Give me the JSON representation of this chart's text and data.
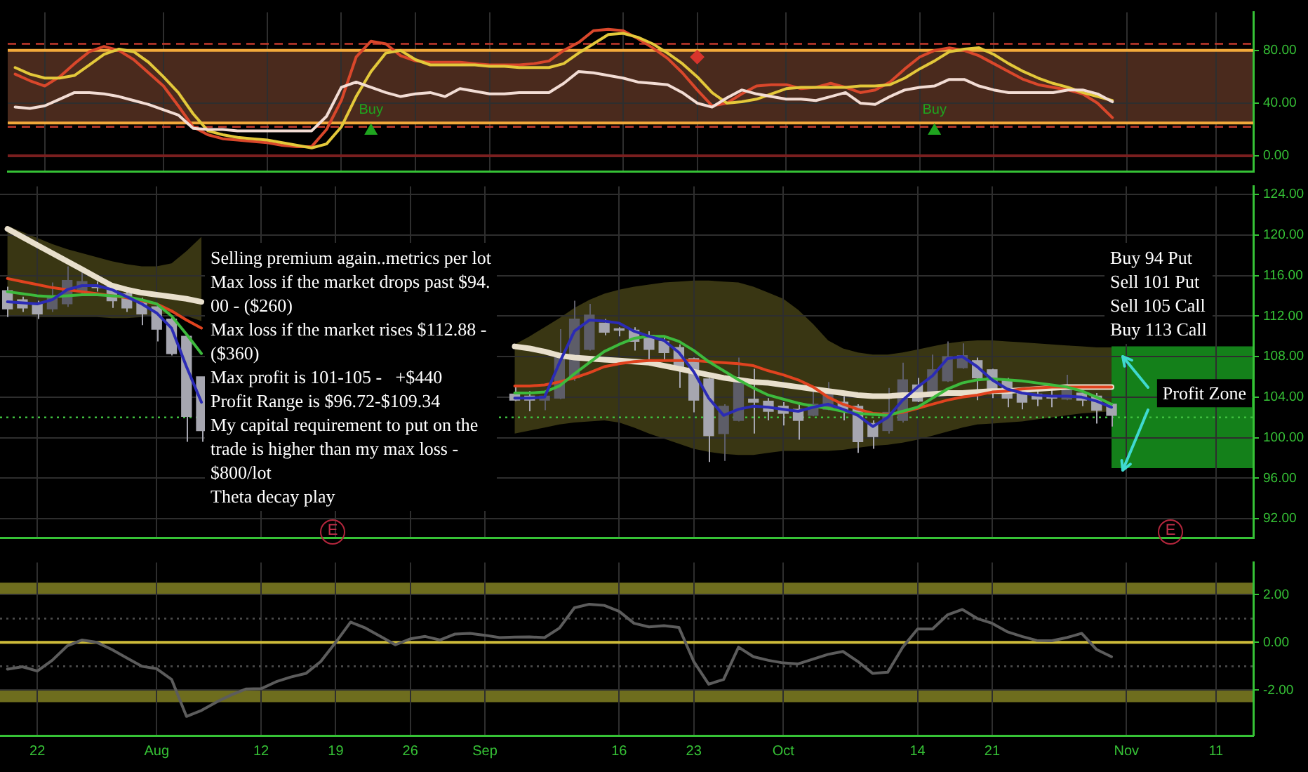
{
  "chart_data": [
    {
      "type": "line",
      "categories": [
        null,
        null,
        null,
        null,
        null,
        null,
        null,
        null,
        null,
        null,
        null,
        null,
        null,
        null,
        null,
        null,
        null,
        null,
        null,
        null,
        null,
        null,
        null,
        null,
        null,
        null,
        null,
        null,
        null,
        null,
        null,
        null,
        null,
        null,
        null,
        null,
        null,
        null,
        null,
        null,
        null,
        null,
        null,
        null,
        null,
        null,
        null,
        null,
        null,
        null,
        null,
        null,
        null,
        null,
        null,
        null,
        null,
        null,
        null,
        null,
        null,
        null,
        null,
        null,
        null,
        null,
        null,
        null,
        null,
        null,
        null,
        null,
        null,
        null,
        null,
        null,
        null,
        null,
        null,
        null,
        null,
        null,
        null,
        null
      ],
      "series": [
        {
          "color": "#d9472b",
          "values": [
            62,
            57,
            53,
            60,
            70,
            79,
            83,
            80,
            73,
            63,
            53,
            38,
            22,
            16,
            13,
            12,
            11,
            10,
            8,
            7,
            7,
            20,
            42,
            75,
            87,
            85,
            76,
            72,
            71,
            71,
            71,
            70,
            69,
            69,
            69,
            70,
            72,
            80,
            86,
            95,
            96,
            95,
            89,
            82,
            74,
            63,
            50,
            38,
            40,
            47,
            53,
            54,
            54,
            51,
            52,
            55,
            52,
            48,
            50,
            56,
            66,
            75,
            80,
            82,
            80,
            76,
            70,
            64,
            58,
            54,
            52,
            50,
            47,
            40,
            29,
            null,
            null,
            null,
            null,
            null,
            null,
            null,
            null,
            null
          ]
        },
        {
          "color": "#e3c83a",
          "values": [
            67,
            62,
            59,
            59,
            61,
            69,
            77,
            81,
            79,
            71,
            60,
            48,
            32,
            19,
            16,
            14,
            13,
            12,
            10,
            8,
            6,
            9,
            22,
            45,
            64,
            78,
            80,
            73,
            69,
            69,
            69,
            69,
            68,
            68,
            67,
            67,
            67,
            70,
            78,
            85,
            92,
            93,
            90,
            85,
            78,
            70,
            60,
            48,
            40,
            41,
            43,
            47,
            51,
            52,
            52,
            52,
            52,
            53,
            53,
            54,
            59,
            66,
            72,
            79,
            81,
            82,
            77,
            70,
            64,
            59,
            55,
            52,
            48,
            45,
            42,
            null,
            null,
            null,
            null,
            null,
            null,
            null,
            null,
            null
          ]
        },
        {
          "color": "#f2dcd4",
          "values": [
            37,
            36,
            38,
            43,
            48,
            48,
            47,
            45,
            42,
            39,
            35,
            31,
            21,
            20,
            20,
            19,
            19,
            19,
            19,
            19,
            19,
            30,
            52,
            56,
            52,
            48,
            45,
            47,
            48,
            45,
            51,
            49,
            47,
            47,
            48,
            48,
            48,
            55,
            64,
            63,
            61,
            59,
            56,
            55,
            54,
            48,
            40,
            37,
            44,
            50,
            47,
            45,
            43,
            43,
            42,
            45,
            48,
            40,
            39,
            45,
            50,
            52,
            53,
            58,
            58,
            53,
            50,
            48,
            48,
            48,
            48,
            50,
            50,
            47,
            41,
            null,
            null,
            null,
            null,
            null,
            null,
            null,
            null,
            null
          ]
        },
        {
          "type": "scatter",
          "color": "#1fa51f",
          "marker": "triangle",
          "values": [
            null,
            null,
            null,
            null,
            null,
            null,
            null,
            null,
            null,
            null,
            null,
            null,
            null,
            null,
            null,
            null,
            null,
            null,
            null,
            null,
            null,
            null,
            null,
            null,
            19,
            null,
            null,
            null,
            null,
            null,
            null,
            null,
            null,
            null,
            null,
            null,
            null,
            null,
            null,
            null,
            null,
            null,
            null,
            null,
            null,
            null,
            null,
            null,
            null,
            null,
            null,
            null,
            null,
            null,
            null,
            null,
            null,
            null,
            null,
            null,
            null,
            null,
            19,
            null,
            null,
            null,
            null,
            null,
            null,
            null,
            null,
            null,
            null,
            null,
            null,
            null,
            null,
            null,
            null,
            null,
            null,
            null,
            null,
            null
          ],
          "value_labels": [
            null,
            null,
            null,
            null,
            null,
            null,
            null,
            null,
            null,
            null,
            null,
            null,
            null,
            null,
            null,
            null,
            null,
            null,
            null,
            null,
            null,
            null,
            null,
            null,
            "Buy",
            null,
            null,
            null,
            null,
            null,
            null,
            null,
            null,
            null,
            null,
            null,
            null,
            null,
            null,
            null,
            null,
            null,
            null,
            null,
            null,
            null,
            null,
            null,
            null,
            null,
            null,
            null,
            null,
            null,
            null,
            null,
            null,
            null,
            null,
            null,
            null,
            null,
            "Buy",
            null,
            null,
            null,
            null,
            null,
            null,
            null,
            null,
            null,
            null,
            null,
            null,
            null,
            null,
            null,
            null,
            null,
            null,
            null,
            null,
            null
          ]
        },
        {
          "type": "scatter",
          "color": "#d8342c",
          "marker": "diamond",
          "values": [
            null,
            null,
            null,
            null,
            null,
            null,
            null,
            null,
            null,
            null,
            null,
            null,
            null,
            null,
            null,
            null,
            null,
            null,
            null,
            null,
            null,
            null,
            null,
            null,
            null,
            null,
            null,
            null,
            null,
            null,
            null,
            null,
            null,
            null,
            null,
            null,
            null,
            null,
            null,
            null,
            null,
            null,
            null,
            null,
            null,
            null,
            75,
            null,
            null,
            null,
            null,
            null,
            null,
            null,
            null,
            null,
            null,
            null,
            null,
            null,
            null,
            null,
            null,
            null,
            null,
            null,
            null,
            null,
            null,
            null,
            null,
            null,
            null,
            null,
            null,
            null,
            null,
            null,
            null,
            null,
            null,
            null,
            null,
            null
          ]
        }
      ],
      "ylim": [
        -12,
        109
      ],
      "yticks": [
        {
          "value": 0,
          "label": "0.00"
        },
        {
          "value": 40,
          "label": "40.00"
        },
        {
          "value": 80,
          "label": "80.00"
        }
      ],
      "bands": [
        {
          "axis": "y",
          "from": 25,
          "to": 80,
          "color": "#4a2a1d"
        }
      ],
      "ref_lines": [
        {
          "axis": "y",
          "value": 80,
          "color": "#f2a93b"
        },
        {
          "axis": "y",
          "value": 25,
          "color": "#f2a93b"
        },
        {
          "axis": "y",
          "value": 85,
          "color": "#c33a2c",
          "line_style": "dashed"
        },
        {
          "axis": "y",
          "value": 22,
          "color": "#c33a2c",
          "line_style": "dashed"
        },
        {
          "axis": "y",
          "value": 0,
          "color": "#7a1f1f"
        }
      ],
      "grid": true,
      "tick_labels": "y"
    },
    {
      "type": "candlestick",
      "categories": [
        null,
        null,
        null,
        null,
        null,
        null,
        null,
        null,
        null,
        null,
        null,
        null,
        null,
        null,
        null,
        null,
        null,
        null,
        null,
        null,
        null,
        null,
        null,
        null,
        null,
        null,
        null,
        null,
        null,
        null,
        null,
        null,
        null,
        null,
        null,
        null,
        null,
        null,
        null,
        null,
        null,
        null,
        null,
        null,
        null,
        null,
        null,
        null,
        null,
        null,
        null,
        null,
        null,
        null,
        null,
        null,
        null,
        null,
        null,
        null,
        null,
        null,
        null,
        null,
        null,
        null,
        null,
        null,
        null,
        null,
        null,
        null,
        null,
        null,
        null,
        null,
        null,
        null,
        null,
        null,
        null,
        null,
        null,
        null
      ],
      "ohlc": [
        [
          114.5,
          114.9,
          111.9,
          112.7
        ],
        [
          113.6,
          113.9,
          112.4,
          112.8
        ],
        [
          113.2,
          113.5,
          111.7,
          112.2
        ],
        [
          112.7,
          115.3,
          112.4,
          114.0
        ],
        [
          113.2,
          116.9,
          112.9,
          115.5
        ],
        [
          114.4,
          116.4,
          114.2,
          115.4
        ],
        [
          114.9,
          115.4,
          114.4,
          114.8
        ],
        [
          114.9,
          115.2,
          112.8,
          113.5
        ],
        [
          114.2,
          114.4,
          112.4,
          112.8
        ],
        [
          113.5,
          113.8,
          111.1,
          112.2
        ],
        [
          112.9,
          113.2,
          109.5,
          110.7
        ],
        [
          111.7,
          112.0,
          108.1,
          108.3
        ],
        [
          110.0,
          110.0,
          99.6,
          102.1
        ],
        [
          106.0,
          106.0,
          99.6,
          100.7
        ],
        null,
        null,
        null,
        null,
        null,
        null,
        null,
        null,
        null,
        null,
        null,
        null,
        null,
        null,
        null,
        null,
        null,
        null,
        null,
        null,
        [
          104.3,
          105.2,
          103.6,
          103.7
        ],
        [
          104.1,
          104.6,
          102.6,
          103.7
        ],
        [
          103.7,
          104.6,
          102.7,
          104.1
        ],
        [
          103.9,
          110.7,
          103.8,
          107.9
        ],
        [
          105.9,
          113.5,
          105.6,
          111.7
        ],
        [
          108.7,
          113.2,
          108.6,
          112.1
        ],
        [
          111.3,
          111.7,
          110.1,
          110.4
        ],
        [
          110.7,
          110.9,
          110.0,
          110.6
        ],
        [
          110.6,
          110.9,
          108.6,
          109.5
        ],
        [
          110.1,
          110.5,
          107.6,
          108.7
        ],
        [
          109.5,
          110.0,
          107.6,
          108.4
        ],
        [
          108.9,
          109.2,
          104.9,
          106.7
        ],
        [
          107.8,
          107.9,
          102.5,
          103.7
        ],
        [
          105.8,
          105.9,
          97.6,
          100.2
        ],
        [
          100.4,
          103.3,
          97.7,
          103.1
        ],
        [
          101.7,
          107.9,
          101.6,
          105.8
        ],
        [
          103.8,
          106.8,
          100.4,
          103.5
        ],
        [
          103.6,
          103.9,
          101.7,
          102.6
        ],
        [
          103.1,
          103.5,
          101.2,
          102.4
        ],
        [
          102.8,
          103.3,
          99.8,
          101.7
        ],
        [
          102.2,
          104.8,
          102.1,
          103.3
        ],
        [
          102.8,
          105.5,
          102.7,
          104.4
        ],
        [
          103.5,
          104.1,
          101.7,
          102.8
        ],
        [
          103.1,
          103.3,
          98.5,
          99.6
        ],
        [
          101.4,
          101.7,
          98.9,
          100.1
        ],
        [
          100.7,
          104.9,
          100.4,
          102.5
        ],
        [
          101.7,
          107.4,
          101.5,
          105.7
        ],
        [
          105.2,
          105.9,
          103.5,
          103.6
        ],
        [
          104.4,
          108.2,
          104.3,
          106.7
        ],
        [
          105.6,
          109.5,
          105.5,
          108.0
        ],
        [
          106.9,
          109.3,
          106.8,
          108.1
        ],
        [
          107.6,
          107.9,
          103.7,
          105.9
        ],
        [
          106.7,
          106.8,
          103.9,
          104.8
        ],
        [
          105.7,
          105.9,
          103.0,
          103.9
        ],
        [
          104.7,
          104.9,
          102.8,
          103.5
        ],
        [
          104.3,
          104.6,
          103.1,
          103.8
        ],
        [
          104.0,
          104.8,
          103.0,
          103.9
        ],
        [
          103.8,
          106.2,
          103.7,
          104.8
        ],
        [
          104.4,
          104.7,
          103.1,
          103.7
        ],
        [
          104.1,
          104.4,
          101.4,
          102.7
        ],
        [
          103.3,
          103.4,
          101.1,
          102.2
        ],
        null,
        null,
        null,
        null,
        null,
        null,
        null,
        null,
        null
      ],
      "colors": [
        "#a6a6b0",
        "#a6a6b0",
        "#a6a6b0",
        "#5d5d68",
        "#5d5d68",
        "#5d5d68",
        "#a6a6b0",
        "#a6a6b0",
        "#a6a6b0",
        "#a6a6b0",
        "#a6a6b0",
        "#a6a6b0",
        "#a6a6b0",
        "#a6a6b0",
        null,
        null,
        null,
        null,
        null,
        null,
        null,
        null,
        null,
        null,
        null,
        null,
        null,
        null,
        null,
        null,
        null,
        null,
        null,
        null,
        "#a6a6b0",
        "#a6a6b0",
        "#5d5d68",
        "#5d5d68",
        "#5d5d68",
        "#5d5d68",
        "#a6a6b0",
        "#a6a6b0",
        "#a6a6b0",
        "#a6a6b0",
        "#a6a6b0",
        "#a6a6b0",
        "#a6a6b0",
        "#a6a6b0",
        "#5d5d68",
        "#5d5d68",
        "#a6a6b0",
        "#a6a6b0",
        "#a6a6b0",
        "#a6a6b0",
        "#5d5d68",
        "#5d5d68",
        "#a6a6b0",
        "#a6a6b0",
        "#a6a6b0",
        "#5d5d68",
        "#5d5d68",
        "#a6a6b0",
        "#5d5d68",
        "#5d5d68",
        "#5d5d68",
        "#a6a6b0",
        "#a6a6b0",
        "#a6a6b0",
        "#a6a6b0",
        "#a6a6b0",
        "#a6a6b0",
        "#5d5d68",
        "#a6a6b0",
        "#a6a6b0",
        "#a6a6b0",
        null,
        null,
        null,
        null,
        null,
        null,
        null,
        null,
        null
      ],
      "series": [
        {
          "type": "line",
          "color": "#e8dfcc",
          "values": [
            120.6,
            119.8,
            119.0,
            118.2,
            117.4,
            116.6,
            115.8,
            115.0,
            114.6,
            114.3,
            114.1,
            113.9,
            113.7,
            113.4,
            null,
            null,
            null,
            null,
            null,
            null,
            null,
            null,
            null,
            null,
            null,
            null,
            null,
            null,
            null,
            null,
            null,
            null,
            null,
            null,
            109.0,
            108.8,
            108.5,
            108.1,
            107.9,
            107.8,
            107.7,
            107.6,
            107.5,
            107.4,
            107.1,
            106.8,
            106.5,
            106.2,
            105.9,
            105.7,
            105.5,
            105.4,
            105.2,
            105.0,
            104.8,
            104.6,
            104.4,
            104.2,
            104.1,
            104.1,
            104.2,
            104.2,
            104.3,
            104.4,
            104.4,
            104.5,
            104.6,
            104.6,
            104.7,
            104.8,
            104.9,
            105.0,
            105.0,
            105.0,
            105.0,
            null,
            null,
            null,
            null,
            null,
            null,
            null,
            null,
            null
          ],
          "lower": [
            112.0,
            112.0,
            111.9,
            111.9,
            111.9,
            111.9,
            111.9,
            111.8,
            111.8,
            111.9,
            112.1,
            112.3,
            112.0,
            111.5,
            null,
            null,
            null,
            null,
            null,
            null,
            null,
            null,
            null,
            null,
            null,
            null,
            null,
            null,
            null,
            null,
            null,
            null,
            null,
            null,
            100.4,
            100.7,
            101.0,
            101.3,
            101.5,
            101.6,
            101.7,
            101.5,
            101.0,
            100.4,
            99.9,
            99.4,
            98.9,
            98.6,
            98.4,
            98.3,
            98.3,
            98.5,
            98.7,
            98.7,
            98.7,
            98.7,
            98.8,
            99.0,
            99.2,
            99.3,
            99.5,
            99.8,
            100.2,
            100.6,
            101.0,
            101.3,
            101.4,
            101.5,
            101.6,
            101.8,
            102.0,
            102.2,
            102.4,
            102.5,
            102.6,
            null,
            null,
            null,
            null,
            null,
            null,
            null,
            null,
            null
          ],
          "upper": [
            120.9,
            120.3,
            119.7,
            119.1,
            118.6,
            118.2,
            117.8,
            117.4,
            117.1,
            116.9,
            116.9,
            117.2,
            118.4,
            119.8,
            null,
            null,
            null,
            null,
            null,
            null,
            null,
            null,
            null,
            null,
            null,
            null,
            null,
            null,
            null,
            null,
            null,
            null,
            null,
            null,
            109.2,
            110.0,
            110.9,
            111.8,
            112.8,
            113.6,
            114.2,
            114.6,
            114.9,
            115.1,
            115.3,
            115.4,
            115.5,
            115.5,
            115.4,
            115.3,
            114.9,
            114.3,
            113.7,
            112.6,
            111.2,
            109.6,
            108.8,
            108.4,
            108.2,
            108.2,
            108.4,
            108.7,
            109.0,
            109.3,
            109.5,
            109.6,
            109.6,
            109.5,
            109.4,
            109.3,
            109.2,
            109.1,
            109.0,
            108.9,
            108.9,
            null,
            null,
            null,
            null,
            null,
            null,
            null,
            null,
            null
          ]
        },
        {
          "type": "line",
          "color": "#e0431f",
          "values": [
            115.7,
            115.4,
            115.1,
            114.8,
            114.6,
            114.4,
            114.2,
            114.0,
            113.8,
            113.5,
            113.2,
            112.5,
            111.6,
            110.8,
            null,
            null,
            null,
            null,
            null,
            null,
            null,
            null,
            null,
            null,
            null,
            null,
            null,
            null,
            null,
            null,
            null,
            null,
            null,
            null,
            105.1,
            105.1,
            105.2,
            105.5,
            105.9,
            106.4,
            107.0,
            107.3,
            107.5,
            107.6,
            107.6,
            107.6,
            107.6,
            107.5,
            107.4,
            107.3,
            107.1,
            106.6,
            106.2,
            105.7,
            105.0,
            104.0,
            103.3,
            102.8,
            102.4,
            102.3,
            102.5,
            102.9,
            103.3,
            103.7,
            104.0,
            104.2,
            104.5,
            104.6,
            104.8,
            104.9,
            105.0,
            105.0,
            105.0,
            105.0,
            105.0,
            null,
            null,
            null,
            null,
            null,
            null,
            null,
            null,
            null
          ]
        },
        {
          "type": "line",
          "color": "#3dba3d",
          "values": [
            114.4,
            114.2,
            114.0,
            113.9,
            114.0,
            114.1,
            114.1,
            114.0,
            113.9,
            113.6,
            113.2,
            112.0,
            110.2,
            108.3,
            null,
            null,
            null,
            null,
            null,
            null,
            null,
            null,
            null,
            null,
            null,
            null,
            null,
            null,
            null,
            null,
            null,
            null,
            null,
            null,
            104.4,
            104.4,
            104.5,
            105.1,
            106.3,
            107.4,
            108.5,
            109.2,
            109.8,
            110.0,
            110.0,
            109.5,
            108.6,
            107.5,
            106.6,
            105.7,
            104.9,
            104.2,
            103.8,
            103.4,
            103.1,
            102.9,
            102.6,
            102.4,
            102.3,
            102.2,
            102.6,
            103.0,
            103.9,
            104.8,
            105.4,
            105.7,
            105.8,
            105.7,
            105.6,
            105.4,
            105.2,
            105.0,
            104.6,
            104.0,
            103.3,
            null,
            null,
            null,
            null,
            null,
            null,
            null,
            null,
            null
          ]
        },
        {
          "type": "line",
          "color": "#2b2bb5",
          "values": [
            113.4,
            113.3,
            113.2,
            113.6,
            114.6,
            115.0,
            115.0,
            114.6,
            113.9,
            113.2,
            112.3,
            110.8,
            107.0,
            103.5,
            null,
            null,
            null,
            null,
            null,
            null,
            null,
            null,
            null,
            null,
            null,
            null,
            null,
            null,
            null,
            null,
            null,
            null,
            null,
            null,
            103.9,
            103.9,
            104.0,
            107.4,
            110.5,
            111.6,
            111.5,
            111.3,
            110.5,
            110.0,
            109.6,
            108.4,
            106.5,
            103.9,
            102.2,
            102.8,
            103.1,
            103.0,
            102.8,
            102.6,
            103.0,
            103.3,
            102.8,
            102.2,
            101.1,
            102.0,
            103.7,
            105.0,
            106.1,
            107.8,
            108.0,
            107.0,
            105.7,
            104.8,
            104.4,
            104.2,
            104.1,
            104.1,
            104.0,
            103.6,
            103.0,
            null,
            null,
            null,
            null,
            null,
            null,
            null,
            null,
            null
          ]
        }
      ],
      "ylim": [
        90.1,
        124.8
      ],
      "yticks": [
        {
          "value": 92,
          "label": "92.00"
        },
        {
          "value": 96,
          "label": "96.00"
        },
        {
          "value": 100,
          "label": "100.00"
        },
        {
          "value": 104,
          "label": "104.00"
        },
        {
          "value": 108,
          "label": "108.00"
        },
        {
          "value": 112,
          "label": "112.00"
        },
        {
          "value": 116,
          "label": "116.00"
        },
        {
          "value": 120,
          "label": "120.00"
        },
        {
          "value": 124,
          "label": "124.00"
        }
      ],
      "bands": [
        {
          "axis": "y",
          "from": 97,
          "to": 109,
          "label": "Profit Zone",
          "color": "#14801a"
        }
      ],
      "ref_lines": [
        {
          "axis": "y",
          "value": 102.0,
          "color": "#3fbf3f",
          "line_style": "dotted"
        }
      ],
      "annotations": [
        "Selling premium again..metrics per lot\nMax loss if the market drops past $94.\n00 - ($260)\nMax loss if the market rises $112.88 -\n($360)\nMax profit is 101-105 -   +$440\nProfit Range is $96.72-$109.34\nMy capital requirement to put on the\ntrade is higher than my max loss -\n$800/lot\nTheta decay play",
        "Buy 94 Put\nSell 101 Put\nSell 105 Call\nBuy 113 Call",
        "E",
        "E"
      ],
      "grid": true,
      "tick_labels": "y"
    },
    {
      "type": "line",
      "categories": [
        null,
        null,
        "22",
        null,
        null,
        null,
        null,
        null,
        null,
        null,
        "Aug",
        null,
        null,
        null,
        null,
        null,
        null,
        "12",
        null,
        null,
        null,
        null,
        "19",
        null,
        null,
        null,
        null,
        "26",
        null,
        null,
        null,
        null,
        "Sep",
        null,
        null,
        null,
        null,
        null,
        null,
        null,
        null,
        "16",
        null,
        null,
        null,
        null,
        "23",
        null,
        null,
        null,
        null,
        null,
        "Oct",
        null,
        null,
        null,
        null,
        null,
        null,
        null,
        null,
        "14",
        null,
        null,
        null,
        null,
        "21",
        null,
        null,
        null,
        null,
        null,
        null,
        null,
        null,
        "Nov",
        null,
        null,
        null,
        null,
        null,
        "11",
        null,
        null
      ],
      "series": [
        {
          "color": "#5c5c5c",
          "values": [
            -1.12,
            -1.02,
            -1.2,
            -0.75,
            -0.15,
            0.1,
            0.0,
            -0.3,
            -0.65,
            -1.0,
            -1.1,
            -1.55,
            -3.1,
            -2.85,
            -2.5,
            -2.2,
            -1.95,
            -1.94,
            -1.65,
            -1.45,
            -1.3,
            -0.8,
            0.0,
            0.85,
            0.6,
            0.25,
            -0.1,
            0.15,
            0.25,
            0.1,
            0.35,
            0.38,
            0.3,
            0.2,
            0.22,
            0.23,
            0.2,
            0.6,
            1.45,
            1.6,
            1.55,
            1.3,
            0.8,
            0.65,
            0.7,
            0.63,
            -0.8,
            -1.75,
            -1.55,
            -0.2,
            -0.6,
            -0.75,
            -0.86,
            -0.9,
            -0.7,
            -0.5,
            -0.38,
            -0.8,
            -1.3,
            -1.25,
            -0.2,
            0.56,
            0.56,
            1.15,
            1.38,
            1.0,
            0.8,
            0.45,
            0.25,
            0.08,
            0.07,
            0.2,
            0.38,
            -0.3,
            -0.6,
            null,
            null,
            null,
            null,
            null,
            null,
            null,
            null,
            null
          ]
        }
      ],
      "ylim": [
        -3.9,
        3.35
      ],
      "yticks": [
        {
          "value": -2,
          "label": "-2.00"
        },
        {
          "value": 0,
          "label": "0.00"
        },
        {
          "value": 2,
          "label": "2.00"
        }
      ],
      "bands": [
        {
          "axis": "y",
          "from": 2,
          "to": 2.5,
          "color": "#6e6d1e"
        },
        {
          "axis": "y",
          "from": -2.5,
          "to": -2,
          "color": "#6e6d1e"
        }
      ],
      "ref_lines": [
        {
          "axis": "y",
          "value": 0,
          "color": "#cdbb3a"
        },
        {
          "axis": "y",
          "value": 1,
          "color": "#4a4a4a",
          "line_style": "dotted"
        },
        {
          "axis": "y",
          "value": -1,
          "color": "#4a4a4a",
          "line_style": "dotted"
        }
      ],
      "grid": true
    }
  ]
}
